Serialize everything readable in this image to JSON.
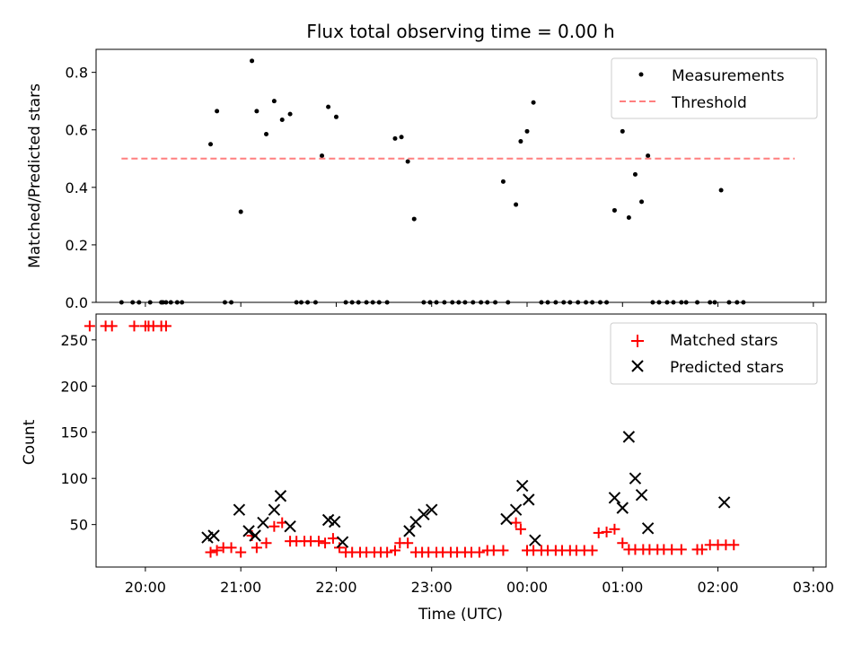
{
  "title": "Flux total observing time = 0.00 h",
  "chart_data": [
    {
      "type": "scatter",
      "ylabel": "Matched/Predicted stars",
      "xlabel": "",
      "xlim": [
        "19:29",
        "03:08"
      ],
      "ylim": [
        0,
        0.88
      ],
      "yticks": [
        0.0,
        0.2,
        0.4,
        0.6,
        0.8
      ],
      "ytick_labels": [
        "0.0",
        "0.2",
        "0.4",
        "0.6",
        "0.8"
      ],
      "xticks": [
        "20:00",
        "21:00",
        "22:00",
        "23:00",
        "00:00",
        "01:00",
        "02:00",
        "03:00"
      ],
      "legend_position": "upper right",
      "grid": false,
      "series": [
        {
          "name": "Measurements",
          "marker": "dot",
          "color": "#000000",
          "points": [
            [
              "19:45",
              0
            ],
            [
              "19:52",
              0
            ],
            [
              "19:56",
              0
            ],
            [
              "20:03",
              0
            ],
            [
              "20:10",
              0
            ],
            [
              "20:11",
              0
            ],
            [
              "20:13",
              0
            ],
            [
              "20:16",
              0
            ],
            [
              "20:20",
              0
            ],
            [
              "20:23",
              0
            ],
            [
              "20:41",
              0.55
            ],
            [
              "20:45",
              0.665
            ],
            [
              "20:50",
              0
            ],
            [
              "20:54",
              0
            ],
            [
              "21:00",
              0.315
            ],
            [
              "21:07",
              0.84
            ],
            [
              "21:10",
              0.665
            ],
            [
              "21:16",
              0.585
            ],
            [
              "21:21",
              0.7
            ],
            [
              "21:26",
              0.635
            ],
            [
              "21:31",
              0.655
            ],
            [
              "21:35",
              0
            ],
            [
              "21:38",
              0
            ],
            [
              "21:42",
              0
            ],
            [
              "21:47",
              0
            ],
            [
              "21:51",
              0.51
            ],
            [
              "21:55",
              0.68
            ],
            [
              "22:00",
              0.645
            ],
            [
              "22:06",
              0
            ],
            [
              "22:10",
              0
            ],
            [
              "22:14",
              0
            ],
            [
              "22:19",
              0
            ],
            [
              "22:23",
              0
            ],
            [
              "22:27",
              0
            ],
            [
              "22:32",
              0
            ],
            [
              "22:37",
              0.57
            ],
            [
              "22:41",
              0.575
            ],
            [
              "22:45",
              0.49
            ],
            [
              "22:49",
              0.29
            ],
            [
              "22:55",
              0
            ],
            [
              "22:59",
              0
            ],
            [
              "23:03",
              0
            ],
            [
              "23:08",
              0
            ],
            [
              "23:13",
              0
            ],
            [
              "23:17",
              0
            ],
            [
              "23:21",
              0
            ],
            [
              "23:26",
              0
            ],
            [
              "23:31",
              0
            ],
            [
              "23:35",
              0
            ],
            [
              "23:40",
              0
            ],
            [
              "23:45",
              0.42
            ],
            [
              "23:48",
              0
            ],
            [
              "23:53",
              0.34
            ],
            [
              "23:56",
              0.56
            ],
            [
              "00:00",
              0.595
            ],
            [
              "00:04",
              0.695
            ],
            [
              "00:09",
              0
            ],
            [
              "00:13",
              0
            ],
            [
              "00:18",
              0
            ],
            [
              "00:23",
              0
            ],
            [
              "00:27",
              0
            ],
            [
              "00:32",
              0
            ],
            [
              "00:37",
              0
            ],
            [
              "00:41",
              0
            ],
            [
              "00:46",
              0
            ],
            [
              "00:50",
              0
            ],
            [
              "00:55",
              0.32
            ],
            [
              "01:00",
              0.595
            ],
            [
              "01:04",
              0.295
            ],
            [
              "01:08",
              0.445
            ],
            [
              "01:12",
              0.35
            ],
            [
              "01:16",
              0.51
            ],
            [
              "01:19",
              0
            ],
            [
              "01:23",
              0
            ],
            [
              "01:28",
              0
            ],
            [
              "01:32",
              0
            ],
            [
              "01:37",
              0
            ],
            [
              "01:40",
              0
            ],
            [
              "01:47",
              0
            ],
            [
              "01:55",
              0
            ],
            [
              "01:58",
              0
            ],
            [
              "02:02",
              0.39
            ],
            [
              "02:07",
              0
            ],
            [
              "02:12",
              0
            ],
            [
              "02:16",
              0
            ]
          ]
        },
        {
          "name": "Threshold",
          "type": "line",
          "style": "dashed",
          "color": "#ff7f7f",
          "points": [
            [
              "19:45",
              0.5
            ],
            [
              "03:08",
              0.5
            ]
          ]
        }
      ]
    },
    {
      "type": "scatter",
      "ylabel": "Count",
      "xlabel": "Time (UTC)",
      "xlim": [
        "19:29",
        "03:08"
      ],
      "ylim": [
        4,
        278
      ],
      "yticks": [
        50,
        100,
        150,
        200,
        250
      ],
      "ytick_labels": [
        "50",
        "100",
        "150",
        "200",
        "250"
      ],
      "xticks": [
        "20:00",
        "21:00",
        "22:00",
        "23:00",
        "00:00",
        "01:00",
        "02:00",
        "03:00"
      ],
      "xtick_labels": [
        "20:00",
        "21:00",
        "22:00",
        "23:00",
        "00:00",
        "01:00",
        "02:00",
        "03:00"
      ],
      "legend_position": "upper right",
      "grid": false,
      "series": [
        {
          "name": "Matched stars",
          "marker": "plus",
          "color": "#ff0000",
          "points": [
            [
              "19:25",
              265
            ],
            [
              "19:35",
              265
            ],
            [
              "19:39",
              265
            ],
            [
              "19:53",
              265
            ],
            [
              "20:00",
              265
            ],
            [
              "20:02",
              265
            ],
            [
              "20:05",
              265
            ],
            [
              "20:10",
              265
            ],
            [
              "20:13",
              265
            ],
            [
              "20:41",
              20
            ],
            [
              "20:45",
              22
            ],
            [
              "20:49",
              25
            ],
            [
              "20:54",
              25
            ],
            [
              "21:00",
              20
            ],
            [
              "21:07",
              38
            ],
            [
              "21:10",
              25
            ],
            [
              "21:16",
              30
            ],
            [
              "21:21",
              48
            ],
            [
              "21:26",
              52
            ],
            [
              "21:31",
              32
            ],
            [
              "21:35",
              32
            ],
            [
              "21:40",
              32
            ],
            [
              "21:44",
              32
            ],
            [
              "21:49",
              32
            ],
            [
              "21:53",
              30
            ],
            [
              "21:58",
              35
            ],
            [
              "22:02",
              25
            ],
            [
              "22:06",
              20
            ],
            [
              "22:10",
              20
            ],
            [
              "22:15",
              20
            ],
            [
              "22:19",
              20
            ],
            [
              "22:24",
              20
            ],
            [
              "22:28",
              20
            ],
            [
              "22:32",
              20
            ],
            [
              "22:37",
              22
            ],
            [
              "22:40",
              30
            ],
            [
              "22:45",
              30
            ],
            [
              "22:50",
              20
            ],
            [
              "22:54",
              20
            ],
            [
              "22:58",
              20
            ],
            [
              "23:03",
              20
            ],
            [
              "23:07",
              20
            ],
            [
              "23:12",
              20
            ],
            [
              "23:16",
              20
            ],
            [
              "23:21",
              20
            ],
            [
              "23:25",
              20
            ],
            [
              "23:30",
              20
            ],
            [
              "23:35",
              22
            ],
            [
              "23:39",
              22
            ],
            [
              "23:45",
              22
            ],
            [
              "23:53",
              52
            ],
            [
              "23:56",
              45
            ],
            [
              "00:00",
              22
            ],
            [
              "00:04",
              22
            ],
            [
              "00:09",
              22
            ],
            [
              "00:13",
              22
            ],
            [
              "00:18",
              22
            ],
            [
              "00:22",
              22
            ],
            [
              "00:27",
              22
            ],
            [
              "00:31",
              22
            ],
            [
              "00:36",
              22
            ],
            [
              "00:41",
              22
            ],
            [
              "00:45",
              41
            ],
            [
              "00:50",
              42
            ],
            [
              "00:55",
              45
            ],
            [
              "01:00",
              30
            ],
            [
              "01:04",
              23
            ],
            [
              "01:08",
              23
            ],
            [
              "01:13",
              23
            ],
            [
              "01:17",
              23
            ],
            [
              "01:22",
              23
            ],
            [
              "01:26",
              23
            ],
            [
              "01:31",
              23
            ],
            [
              "01:37",
              23
            ],
            [
              "01:47",
              23
            ],
            [
              "01:50",
              23
            ],
            [
              "01:55",
              28
            ],
            [
              "02:00",
              28
            ],
            [
              "02:05",
              28
            ],
            [
              "02:10",
              28
            ]
          ]
        },
        {
          "name": "Predicted stars",
          "marker": "x",
          "color": "#000000",
          "points": [
            [
              "20:39",
              36
            ],
            [
              "20:43",
              38
            ],
            [
              "20:59",
              66
            ],
            [
              "21:05",
              43
            ],
            [
              "21:09",
              38
            ],
            [
              "21:14",
              52
            ],
            [
              "21:21",
              66
            ],
            [
              "21:25",
              81
            ],
            [
              "21:31",
              48
            ],
            [
              "21:55",
              55
            ],
            [
              "21:59",
              53
            ],
            [
              "22:04",
              31
            ],
            [
              "22:46",
              43
            ],
            [
              "22:50",
              53
            ],
            [
              "22:55",
              61
            ],
            [
              "23:00",
              66
            ],
            [
              "23:47",
              56
            ],
            [
              "23:53",
              66
            ],
            [
              "23:57",
              92
            ],
            [
              "00:01",
              77
            ],
            [
              "00:05",
              33
            ],
            [
              "00:55",
              79
            ],
            [
              "01:00",
              68
            ],
            [
              "01:04",
              145
            ],
            [
              "01:08",
              100
            ],
            [
              "01:12",
              82
            ],
            [
              "01:16",
              46
            ],
            [
              "02:04",
              74
            ]
          ]
        }
      ]
    }
  ]
}
